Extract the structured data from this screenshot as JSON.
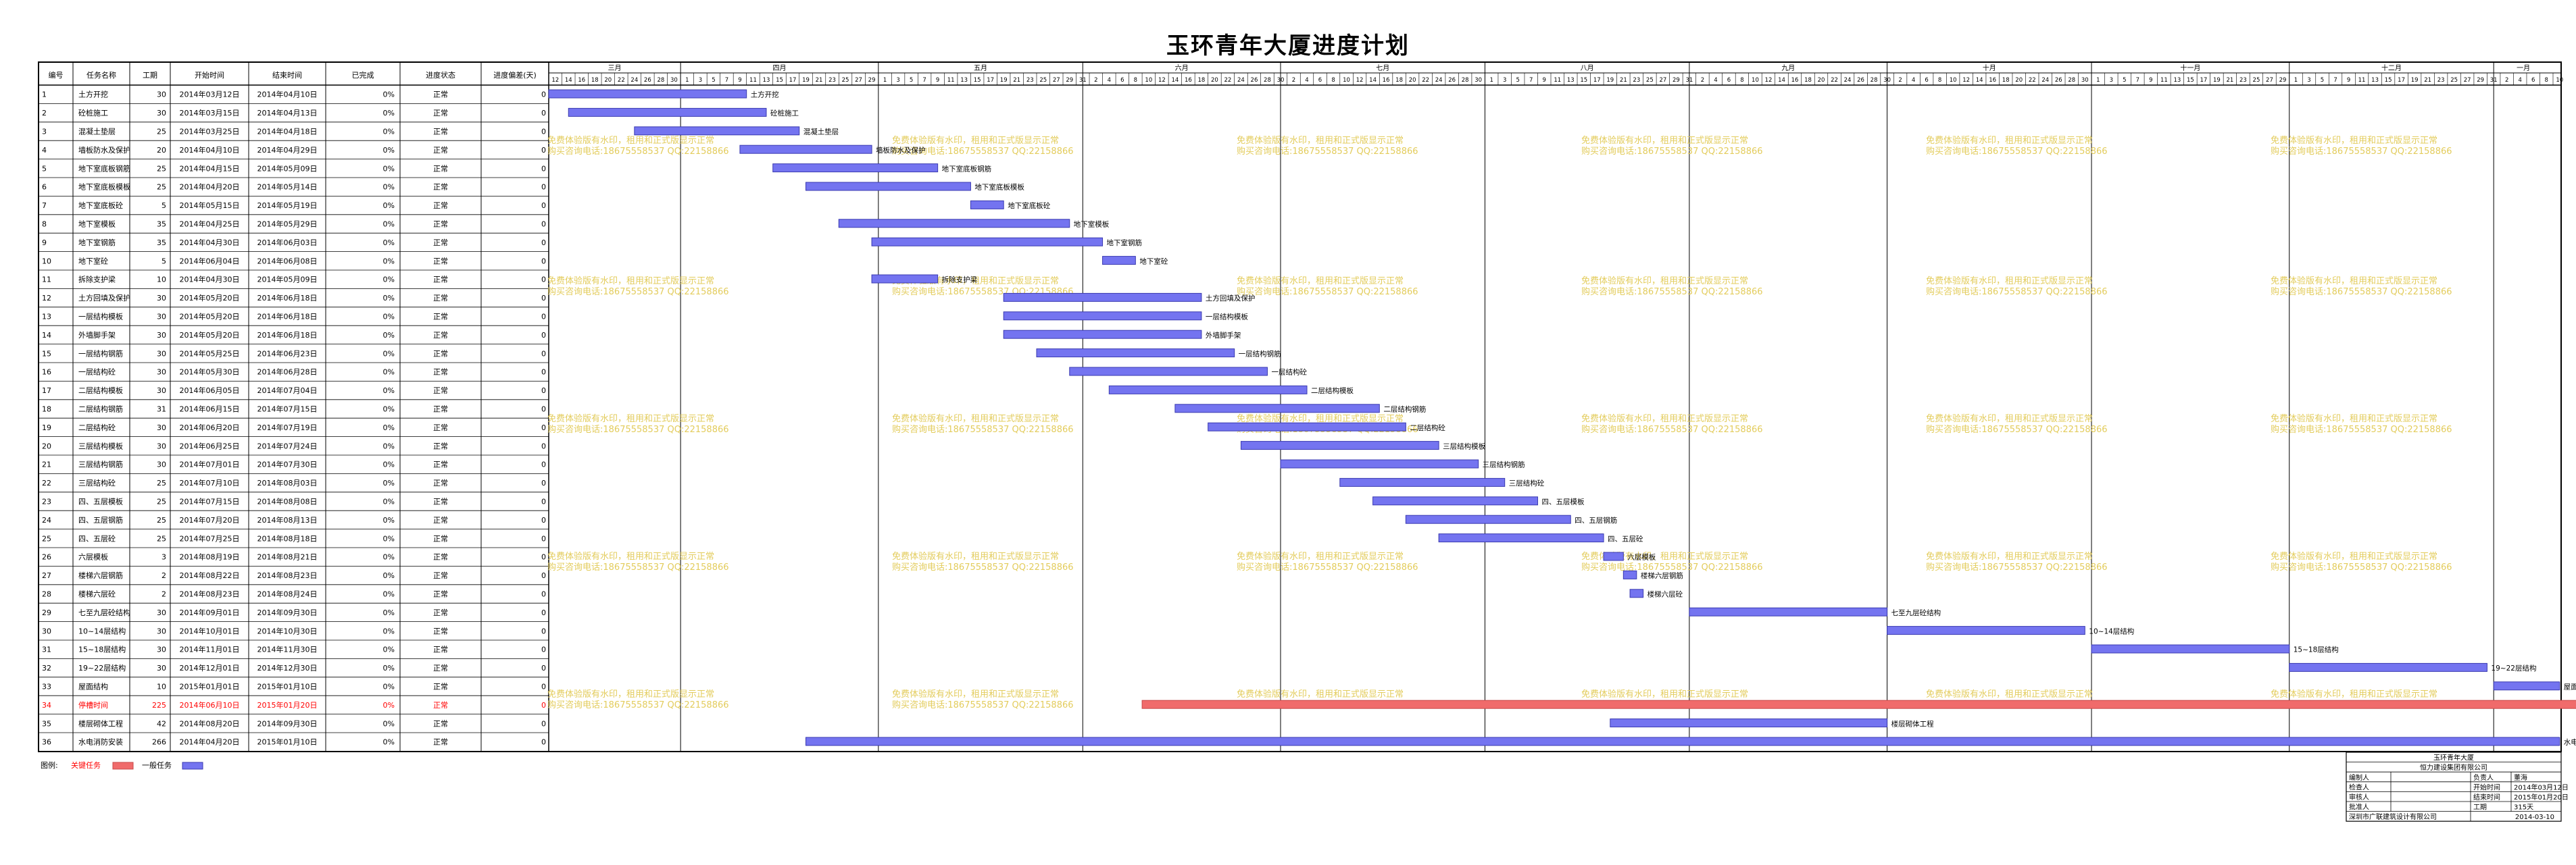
{
  "title": "玉环青年大厦进度计划",
  "columns": [
    "编号",
    "任务名称",
    "工期",
    "开始时间",
    "结束时间",
    "已完成",
    "进度状态",
    "进度偏差(天)"
  ],
  "months": [
    "三月",
    "四月",
    "五月",
    "六月",
    "七月",
    "八月",
    "九月",
    "十月",
    "十一月",
    "十二月",
    "一月"
  ],
  "legend": {
    "label": "图例:",
    "critical": "关键任务",
    "normal": "一般任务"
  },
  "colors": {
    "normal_bar": "#7474f0",
    "critical_bar": "#f06b6b",
    "critical_text": "#ff0000",
    "watermark": "#e3cc5c",
    "grid": "#c8c8c8"
  },
  "watermark": {
    "line1": "免费体验版有水印，租用和正式版显示正常",
    "line2": "购买咨询电话:18675558537 QQ:22158866"
  },
  "info_block": {
    "project": "玉环青年大厦",
    "company": "恒力建设集团有限公司",
    "rows": [
      [
        "编制人",
        "",
        "负责人",
        "董海"
      ],
      [
        "检查人",
        "",
        "开始时间",
        "2014年03月12日"
      ],
      [
        "审核人",
        "",
        "结束时间",
        "2015年01月20日"
      ],
      [
        "批准人",
        "",
        "工期",
        "315天"
      ]
    ],
    "footer": "深圳市广联建筑设计有限公司",
    "date": "2014-03-10"
  },
  "chart_data": {
    "type": "gantt",
    "title": "玉环青年大厦进度计划",
    "time_start": "2014-03-12",
    "time_end": "2015-01-10",
    "tasks": [
      {
        "id": "1",
        "name": "土方开挖",
        "duration": "30",
        "start": "2014年03月12日",
        "end": "2014年04月10日",
        "done": "0%",
        "status": "正常",
        "dev": "0",
        "bar_start": "2014-03-12",
        "bar_end": "2014-04-10",
        "label": "土方开挖",
        "critical": false
      },
      {
        "id": "2",
        "name": "砼桩施工",
        "duration": "30",
        "start": "2014年03月15日",
        "end": "2014年04月13日",
        "done": "0%",
        "status": "正常",
        "dev": "0",
        "bar_start": "2014-03-15",
        "bar_end": "2014-04-13",
        "label": "砼桩施工",
        "critical": false
      },
      {
        "id": "3",
        "name": "混凝土垫层",
        "duration": "25",
        "start": "2014年03月25日",
        "end": "2014年04月18日",
        "done": "0%",
        "status": "正常",
        "dev": "0",
        "bar_start": "2014-03-25",
        "bar_end": "2014-04-18",
        "label": "混凝土垫层",
        "critical": false
      },
      {
        "id": "4",
        "name": "墙板防水及保护",
        "duration": "20",
        "start": "2014年04月10日",
        "end": "2014年04月29日",
        "done": "0%",
        "status": "正常",
        "dev": "0",
        "bar_start": "2014-04-10",
        "bar_end": "2014-04-29",
        "label": "墙板防水及保护",
        "critical": false
      },
      {
        "id": "5",
        "name": "地下室底板钢筋",
        "duration": "25",
        "start": "2014年04月15日",
        "end": "2014年05月09日",
        "done": "0%",
        "status": "正常",
        "dev": "0",
        "bar_start": "2014-04-15",
        "bar_end": "2014-05-09",
        "label": "地下室底板钢筋",
        "critical": false
      },
      {
        "id": "6",
        "name": "地下室底板模板",
        "duration": "25",
        "start": "2014年04月20日",
        "end": "2014年05月14日",
        "done": "0%",
        "status": "正常",
        "dev": "0",
        "bar_start": "2014-04-20",
        "bar_end": "2014-05-14",
        "label": "地下室底板模板",
        "critical": false
      },
      {
        "id": "7",
        "name": "地下室底板砼",
        "duration": "5",
        "start": "2014年05月15日",
        "end": "2014年05月19日",
        "done": "0%",
        "status": "正常",
        "dev": "0",
        "bar_start": "2014-05-15",
        "bar_end": "2014-05-19",
        "label": "地下室底板砼",
        "critical": false
      },
      {
        "id": "8",
        "name": "地下室模板",
        "duration": "35",
        "start": "2014年04月25日",
        "end": "2014年05月29日",
        "done": "0%",
        "status": "正常",
        "dev": "0",
        "bar_start": "2014-04-25",
        "bar_end": "2014-05-29",
        "label": "地下室模板",
        "critical": false
      },
      {
        "id": "9",
        "name": "地下室钢筋",
        "duration": "35",
        "start": "2014年04月30日",
        "end": "2014年06月03日",
        "done": "0%",
        "status": "正常",
        "dev": "0",
        "bar_start": "2014-04-30",
        "bar_end": "2014-06-03",
        "label": "地下室钢筋",
        "critical": false
      },
      {
        "id": "10",
        "name": "地下室砼",
        "duration": "5",
        "start": "2014年06月04日",
        "end": "2014年06月08日",
        "done": "0%",
        "status": "正常",
        "dev": "0",
        "bar_start": "2014-06-04",
        "bar_end": "2014-06-08",
        "label": "地下室砼",
        "critical": false
      },
      {
        "id": "11",
        "name": "拆除支护梁",
        "duration": "10",
        "start": "2014年04月30日",
        "end": "2014年05月09日",
        "done": "0%",
        "status": "正常",
        "dev": "0",
        "bar_start": "2014-04-30",
        "bar_end": "2014-05-09",
        "label": "拆除支护梁",
        "critical": false
      },
      {
        "id": "12",
        "name": "土方回填及保护",
        "duration": "30",
        "start": "2014年05月20日",
        "end": "2014年06月18日",
        "done": "0%",
        "status": "正常",
        "dev": "0",
        "bar_start": "2014-05-20",
        "bar_end": "2014-06-18",
        "label": "土方回填及保护",
        "critical": false
      },
      {
        "id": "13",
        "name": "一层结构模板",
        "duration": "30",
        "start": "2014年05月20日",
        "end": "2014年06月18日",
        "done": "0%",
        "status": "正常",
        "dev": "0",
        "bar_start": "2014-05-20",
        "bar_end": "2014-06-18",
        "label": "一层结构模板",
        "critical": false
      },
      {
        "id": "14",
        "name": "外墙脚手架",
        "duration": "30",
        "start": "2014年05月20日",
        "end": "2014年06月18日",
        "done": "0%",
        "status": "正常",
        "dev": "0",
        "bar_start": "2014-05-20",
        "bar_end": "2014-06-18",
        "label": "外墙脚手架",
        "critical": false
      },
      {
        "id": "15",
        "name": "一层结构钢筋",
        "duration": "30",
        "start": "2014年05月25日",
        "end": "2014年06月23日",
        "done": "0%",
        "status": "正常",
        "dev": "0",
        "bar_start": "2014-05-25",
        "bar_end": "2014-06-23",
        "label": "一层结构钢筋",
        "critical": false
      },
      {
        "id": "16",
        "name": "一层结构砼",
        "duration": "30",
        "start": "2014年05月30日",
        "end": "2014年06月28日",
        "done": "0%",
        "status": "正常",
        "dev": "0",
        "bar_start": "2014-05-30",
        "bar_end": "2014-06-28",
        "label": "一层结构砼",
        "critical": false
      },
      {
        "id": "17",
        "name": "二层结构模板",
        "duration": "30",
        "start": "2014年06月05日",
        "end": "2014年07月04日",
        "done": "0%",
        "status": "正常",
        "dev": "0",
        "bar_start": "2014-06-05",
        "bar_end": "2014-07-04",
        "label": "二层结构模板",
        "critical": false
      },
      {
        "id": "18",
        "name": "二层结构钢筋",
        "duration": "31",
        "start": "2014年06月15日",
        "end": "2014年07月15日",
        "done": "0%",
        "status": "正常",
        "dev": "0",
        "bar_start": "2014-06-15",
        "bar_end": "2014-07-15",
        "label": "二层结构钢筋",
        "critical": false
      },
      {
        "id": "19",
        "name": "二层结构砼",
        "duration": "30",
        "start": "2014年06月20日",
        "end": "2014年07月19日",
        "done": "0%",
        "status": "正常",
        "dev": "0",
        "bar_start": "2014-06-20",
        "bar_end": "2014-07-19",
        "label": "二层结构砼",
        "critical": false
      },
      {
        "id": "20",
        "name": "三层结构模板",
        "duration": "30",
        "start": "2014年06月25日",
        "end": "2014年07月24日",
        "done": "0%",
        "status": "正常",
        "dev": "0",
        "bar_start": "2014-06-25",
        "bar_end": "2014-07-24",
        "label": "三层结构模板",
        "critical": false
      },
      {
        "id": "21",
        "name": "三层结构钢筋",
        "duration": "30",
        "start": "2014年07月01日",
        "end": "2014年07月30日",
        "done": "0%",
        "status": "正常",
        "dev": "0",
        "bar_start": "2014-07-01",
        "bar_end": "2014-07-30",
        "label": "三层结构钢筋",
        "critical": false
      },
      {
        "id": "22",
        "name": "三层结构砼",
        "duration": "25",
        "start": "2014年07月10日",
        "end": "2014年08月03日",
        "done": "0%",
        "status": "正常",
        "dev": "0",
        "bar_start": "2014-07-10",
        "bar_end": "2014-08-03",
        "label": "三层结构砼",
        "critical": false
      },
      {
        "id": "23",
        "name": "四、五层模板",
        "duration": "25",
        "start": "2014年07月15日",
        "end": "2014年08月08日",
        "done": "0%",
        "status": "正常",
        "dev": "0",
        "bar_start": "2014-07-15",
        "bar_end": "2014-08-08",
        "label": "四、五层模板",
        "critical": false
      },
      {
        "id": "24",
        "name": "四、五层钢筋",
        "duration": "25",
        "start": "2014年07月20日",
        "end": "2014年08月13日",
        "done": "0%",
        "status": "正常",
        "dev": "0",
        "bar_start": "2014-07-20",
        "bar_end": "2014-08-13",
        "label": "四、五层钢筋",
        "critical": false
      },
      {
        "id": "25",
        "name": "四、五层砼",
        "duration": "25",
        "start": "2014年07月25日",
        "end": "2014年08月18日",
        "done": "0%",
        "status": "正常",
        "dev": "0",
        "bar_start": "2014-07-25",
        "bar_end": "2014-08-18",
        "label": "四、五层砼",
        "critical": false
      },
      {
        "id": "26",
        "name": "六层模板",
        "duration": "3",
        "start": "2014年08月19日",
        "end": "2014年08月21日",
        "done": "0%",
        "status": "正常",
        "dev": "0",
        "bar_start": "2014-08-19",
        "bar_end": "2014-08-21",
        "label": "六层模板",
        "critical": false
      },
      {
        "id": "27",
        "name": "楼梯六层钢筋",
        "duration": "2",
        "start": "2014年08月22日",
        "end": "2014年08月23日",
        "done": "0%",
        "status": "正常",
        "dev": "0",
        "bar_start": "2014-08-22",
        "bar_end": "2014-08-23",
        "label": "楼梯六层钢筋",
        "critical": false
      },
      {
        "id": "28",
        "name": "楼梯六层砼",
        "duration": "2",
        "start": "2014年08月23日",
        "end": "2014年08月24日",
        "done": "0%",
        "status": "正常",
        "dev": "0",
        "bar_start": "2014-08-23",
        "bar_end": "2014-08-24",
        "label": "楼梯六层砼",
        "critical": false
      },
      {
        "id": "29",
        "name": "七至九层砼结构",
        "duration": "30",
        "start": "2014年09月01日",
        "end": "2014年09月30日",
        "done": "0%",
        "status": "正常",
        "dev": "0",
        "bar_start": "2014-09-01",
        "bar_end": "2014-09-30",
        "label": "七至九层砼结构",
        "critical": false
      },
      {
        "id": "30",
        "name": "10~14层结构",
        "duration": "30",
        "start": "2014年10月01日",
        "end": "2014年10月30日",
        "done": "0%",
        "status": "正常",
        "dev": "0",
        "bar_start": "2014-10-01",
        "bar_end": "2014-10-30",
        "label": "10~14层结构",
        "critical": false
      },
      {
        "id": "31",
        "name": "15~18层结构",
        "duration": "30",
        "start": "2014年11月01日",
        "end": "2014年11月30日",
        "done": "0%",
        "status": "正常",
        "dev": "0",
        "bar_start": "2014-11-01",
        "bar_end": "2014-11-30",
        "label": "15~18层结构",
        "critical": false
      },
      {
        "id": "32",
        "name": "19~22层结构",
        "duration": "30",
        "start": "2014年12月01日",
        "end": "2014年12月30日",
        "done": "0%",
        "status": "正常",
        "dev": "0",
        "bar_start": "2014-12-01",
        "bar_end": "2014-12-30",
        "label": "19~22层结构",
        "critical": false
      },
      {
        "id": "33",
        "name": "屋面结构",
        "duration": "10",
        "start": "2015年01月01日",
        "end": "2015年01月10日",
        "done": "0%",
        "status": "正常",
        "dev": "0",
        "bar_start": "2015-01-01",
        "bar_end": "2015-01-10",
        "label": "屋面结构",
        "critical": false
      },
      {
        "id": "34",
        "name": "停槽时间",
        "duration": "225",
        "start": "2014年06月10日",
        "end": "2015年01月20日",
        "done": "0%",
        "status": "正常",
        "dev": "0",
        "bar_start": "2014-06-10",
        "bar_end": "2015-01-20",
        "label": "停槽时间",
        "critical": true
      },
      {
        "id": "35",
        "name": "楼层砌体工程",
        "duration": "42",
        "start": "2014年08月20日",
        "end": "2014年09月30日",
        "done": "0%",
        "status": "正常",
        "dev": "0",
        "bar_start": "2014-08-20",
        "bar_end": "2014-09-30",
        "label": "楼层砌体工程",
        "critical": false
      },
      {
        "id": "36",
        "name": "水电消防安装",
        "duration": "266",
        "start": "2014年04月20日",
        "end": "2015年01月10日",
        "done": "0%",
        "status": "正常",
        "dev": "0",
        "bar_start": "2014-04-20",
        "bar_end": "2015-01-10",
        "label": "水电消防安装",
        "critical": false
      }
    ]
  }
}
